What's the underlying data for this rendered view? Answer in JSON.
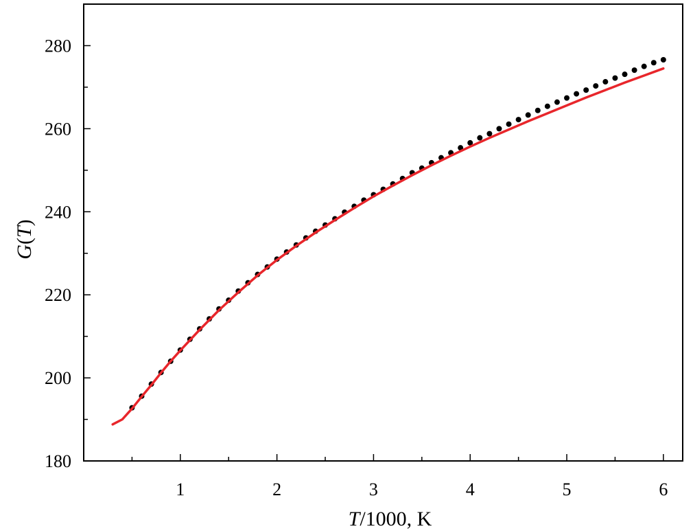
{
  "chart_data": {
    "type": "line",
    "title": "",
    "xlabel_italic": "T",
    "xlabel_rest": "/1000, K",
    "ylabel_italic_1": "G",
    "ylabel_paren_open": "(",
    "ylabel_italic_2": "T",
    "ylabel_paren_close": ")",
    "xlim": [
      0.0,
      6.2
    ],
    "ylim": [
      180,
      290
    ],
    "x_ticks": [
      1,
      2,
      3,
      4,
      5,
      6
    ],
    "x_tick_labels": [
      "1",
      "2",
      "3",
      "4",
      "5",
      "6"
    ],
    "x_minor_ticks": [
      0.5,
      1.5,
      2.5,
      3.5,
      4.5,
      5.5
    ],
    "y_ticks": [
      180,
      200,
      220,
      240,
      260,
      280
    ],
    "y_tick_labels": [
      "180",
      "200",
      "220",
      "240",
      "260",
      "280"
    ],
    "y_minor_ticks": [
      190,
      210,
      230,
      250,
      270
    ],
    "grid": false,
    "series": [
      {
        "style": "dots",
        "color": "#000000",
        "x": [
          0.5,
          0.6,
          0.7,
          0.8,
          0.9,
          1.0,
          1.1,
          1.2,
          1.3,
          1.4,
          1.5,
          1.6,
          1.7,
          1.8,
          1.9,
          2.0,
          2.1,
          2.2,
          2.3,
          2.4,
          2.5,
          2.6,
          2.7,
          2.8,
          2.9,
          3.0,
          3.1,
          3.2,
          3.3,
          3.4,
          3.5,
          3.6,
          3.7,
          3.8,
          3.9,
          4.0,
          4.1,
          4.2,
          4.3,
          4.4,
          4.5,
          4.6,
          4.7,
          4.8,
          4.9,
          5.0,
          5.1,
          5.2,
          5.3,
          5.4,
          5.5,
          5.6,
          5.7,
          5.8,
          5.9,
          6.0
        ],
        "y": [
          192.8,
          195.6,
          198.5,
          201.3,
          204.0,
          206.7,
          209.3,
          211.8,
          214.2,
          216.6,
          218.7,
          220.9,
          222.9,
          224.9,
          226.7,
          228.6,
          230.3,
          232.0,
          233.7,
          235.3,
          236.8,
          238.3,
          239.9,
          241.3,
          242.8,
          244.1,
          245.4,
          246.7,
          248.0,
          249.4,
          250.5,
          251.8,
          253.0,
          254.2,
          255.4,
          256.6,
          257.8,
          258.8,
          260.0,
          261.1,
          262.2,
          263.3,
          264.4,
          265.4,
          266.4,
          267.4,
          268.4,
          269.3,
          270.3,
          271.3,
          272.2,
          273.1,
          274.1,
          275.0,
          275.9,
          276.6
        ]
      },
      {
        "style": "line",
        "color": "#e8262b",
        "x": [
          0.3,
          0.4,
          0.5,
          0.6,
          0.7,
          0.8,
          0.9,
          1.0,
          1.2,
          1.4,
          1.6,
          1.8,
          2.0,
          2.2,
          2.4,
          2.6,
          2.8,
          3.0,
          3.2,
          3.4,
          3.6,
          3.8,
          4.0,
          4.2,
          4.4,
          4.6,
          4.8,
          5.0,
          5.2,
          5.4,
          5.6,
          5.8,
          6.0
        ],
        "y": [
          188.8,
          190.0,
          192.6,
          195.5,
          198.3,
          201.2,
          204.0,
          206.6,
          211.6,
          216.3,
          220.6,
          224.7,
          228.4,
          231.8,
          235.0,
          238.0,
          240.9,
          243.7,
          246.3,
          248.8,
          251.2,
          253.5,
          255.7,
          257.8,
          259.8,
          261.8,
          263.7,
          265.6,
          267.5,
          269.3,
          271.1,
          272.8,
          274.5
        ]
      }
    ]
  }
}
